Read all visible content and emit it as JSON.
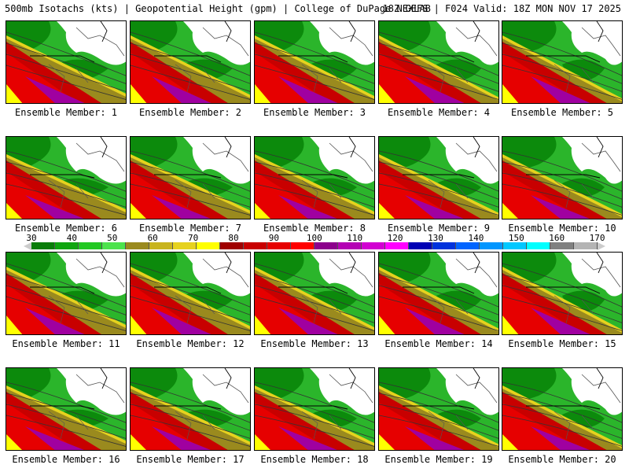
{
  "header": {
    "title_left": "500mb Isotachs (kts) | Geopotential Height (gpm) | College of DuPage NEXLAB",
    "title_right": "18Z GEFS | F024 Valid: 18Z MON NOV 17 2025"
  },
  "members": [
    "Ensemble Member: 1",
    "Ensemble Member: 2",
    "Ensemble Member: 3",
    "Ensemble Member: 4",
    "Ensemble Member: 5",
    "Ensemble Member: 6",
    "Ensemble Member: 7",
    "Ensemble Member: 8",
    "Ensemble Member: 9",
    "Ensemble Member: 10",
    "Ensemble Member: 11",
    "Ensemble Member: 12",
    "Ensemble Member: 13",
    "Ensemble Member: 14",
    "Ensemble Member: 15",
    "Ensemble Member: 16",
    "Ensemble Member: 17",
    "Ensemble Member: 18",
    "Ensemble Member: 19",
    "Ensemble Member: 20"
  ],
  "colorbar": {
    "ticks": [
      "30",
      "40",
      "50",
      "60",
      "70",
      "80",
      "90",
      "100",
      "110",
      "120",
      "130",
      "140",
      "150",
      "160",
      "170"
    ],
    "colors": [
      "#0a7d0a",
      "#0fa50f",
      "#22c822",
      "#4ce34c",
      "#9a8a1e",
      "#c8b41e",
      "#e6d21e",
      "#ffff00",
      "#a00000",
      "#c80000",
      "#e60000",
      "#ff0000",
      "#8c008c",
      "#b400b4",
      "#d200d2",
      "#ff00ff",
      "#0000b4",
      "#0032dc",
      "#0064ff",
      "#0096ff",
      "#00c8ff",
      "#00ffff",
      "#808080",
      "#b4b4b4"
    ]
  }
}
